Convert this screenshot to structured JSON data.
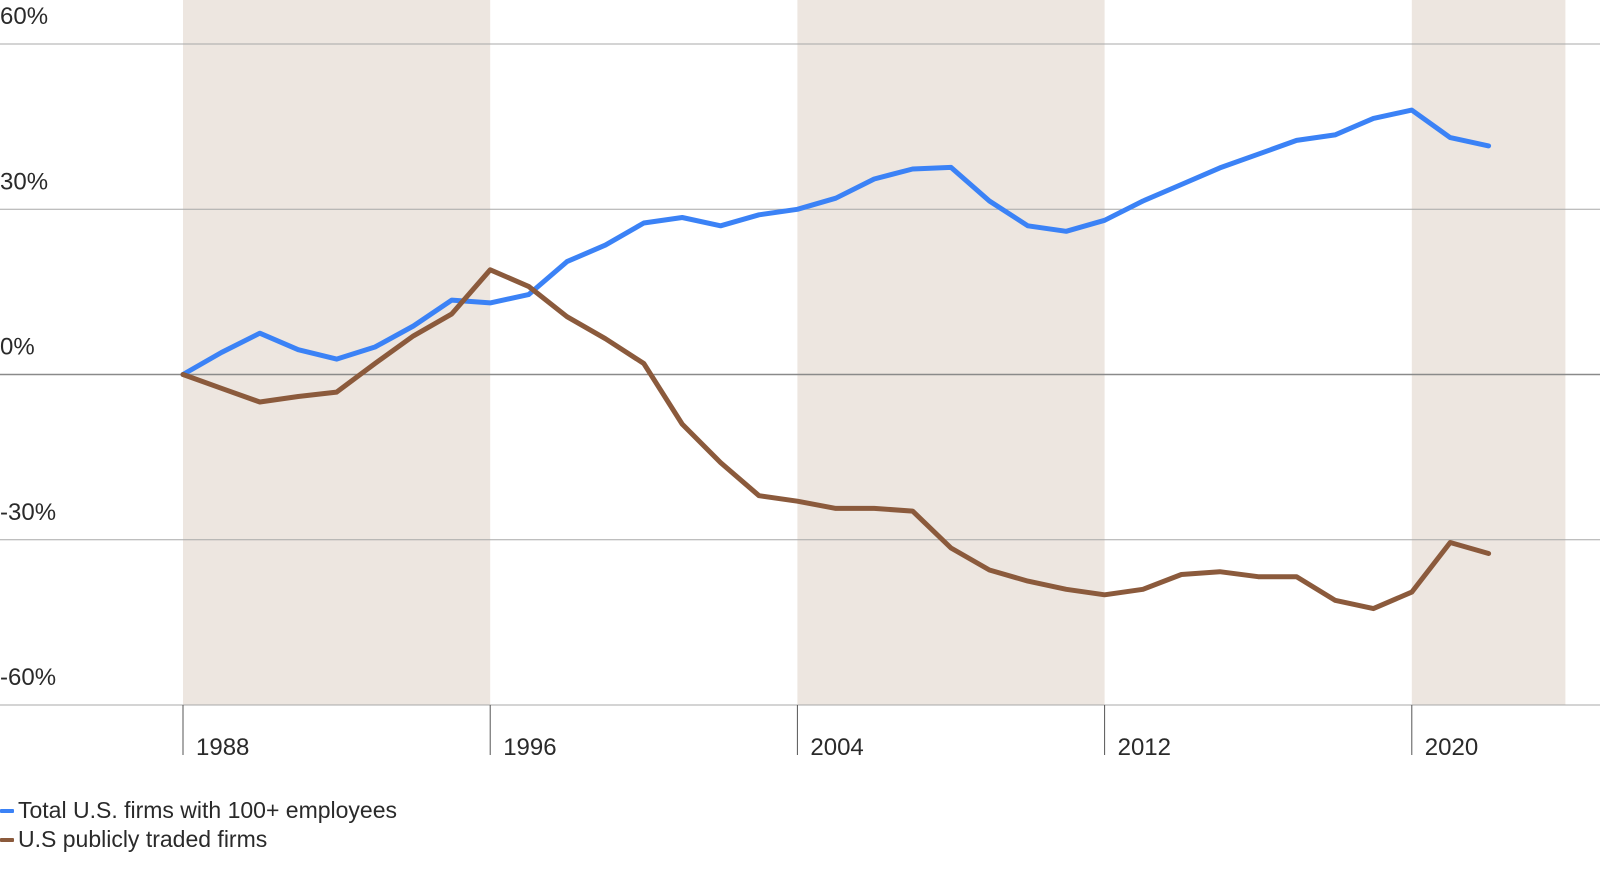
{
  "chart_data": {
    "type": "line",
    "ylim": [
      -60,
      60
    ],
    "xlim": [
      1983.5,
      2024
    ],
    "ytick_values": [
      60,
      30,
      0,
      -30,
      -60
    ],
    "ytick_labels": [
      "60%",
      "30%",
      "0%",
      "-30%",
      "-60%"
    ],
    "xtick_values": [
      1988,
      1996,
      2004,
      2012,
      2020
    ],
    "xtick_labels": [
      "1988",
      "1996",
      "2004",
      "2012",
      "2020"
    ],
    "shaded_periods": [
      [
        1988,
        1996
      ],
      [
        2004,
        2012
      ],
      [
        2020,
        2024
      ]
    ],
    "grid": "horizontal",
    "legend_position": "bottom-left",
    "colors": {
      "shade": "#ede6e0",
      "grid": "#a8a8a8",
      "zero_line": "#8a8a8a",
      "tick": "#555555"
    },
    "x": [
      1988,
      1989,
      1990,
      1991,
      1992,
      1993,
      1994,
      1995,
      1996,
      1997,
      1998,
      1999,
      2000,
      2001,
      2002,
      2003,
      2004,
      2005,
      2006,
      2007,
      2008,
      2009,
      2010,
      2011,
      2012,
      2013,
      2014,
      2015,
      2016,
      2017,
      2018,
      2019,
      2020,
      2021,
      2022
    ],
    "series": [
      {
        "name": "Total U.S. firms with 100+ employees",
        "color": "#3b82f6",
        "values": [
          0,
          4,
          7.5,
          4.5,
          2.8,
          5,
          8.8,
          13.5,
          13,
          14.5,
          20.5,
          23.5,
          27.5,
          28.5,
          27,
          29,
          30,
          32,
          35.5,
          37.3,
          37.6,
          31.5,
          27,
          26,
          28,
          31.5,
          34.5,
          37.5,
          40,
          42.5,
          43.5,
          46.5,
          48,
          43,
          41.5
        ],
        "legend_label": "Total U.S. firms with 100+ employees"
      },
      {
        "name": "U.S publicly traded firms",
        "color": "#8b5a3c",
        "values": [
          0,
          -2.5,
          -5,
          -4,
          -3.2,
          2,
          7,
          11,
          19,
          16,
          10.5,
          6.5,
          2,
          -9,
          -16,
          -22,
          -23,
          -24.3,
          -24.3,
          -24.8,
          -31.5,
          -35.5,
          -37.5,
          -39,
          -40,
          -39,
          -36.3,
          -35.8,
          -36.7,
          -36.7,
          -41,
          -42.5,
          -39.5,
          -30.5,
          -32.5
        ],
        "legend_label": "U.S publicly traded firms"
      }
    ]
  }
}
